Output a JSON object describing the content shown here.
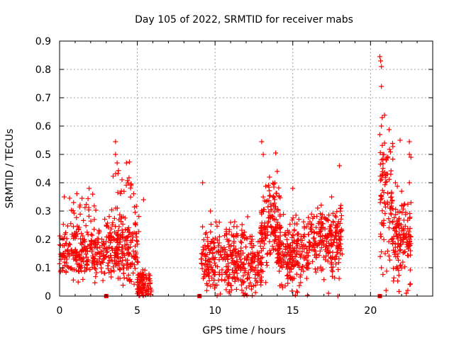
{
  "chart_data": {
    "type": "scatter",
    "title": "Day 105 of 2022, SRMTID for receiver mabs",
    "xlabel": "GPS time / hours",
    "ylabel": "SRMTID / TECUs",
    "xlim": [
      0,
      24
    ],
    "ylim": [
      0,
      0.9
    ],
    "xticks": [
      0,
      5,
      10,
      15,
      20
    ],
    "xtick_labels": [
      "0",
      "5",
      "10",
      "15",
      "20"
    ],
    "yticks": [
      0,
      0.1,
      0.2,
      0.3,
      0.4,
      0.5,
      0.6,
      0.7,
      0.8,
      0.9
    ],
    "ytick_labels": [
      "0",
      "0.1",
      "0.2",
      "0.3",
      "0.4",
      "0.5",
      "0.6",
      "0.7",
      "0.8",
      "0.9"
    ],
    "grid": true,
    "marker": "+",
    "color": "#ff0000",
    "clusters": [
      {
        "x_range": [
          0.0,
          2.9
        ],
        "mean": 0.16,
        "spread": 0.07,
        "count": 230
      },
      {
        "x_range": [
          0.4,
          2.4
        ],
        "mean": 0.3,
        "spread": 0.05,
        "count": 25
      },
      {
        "x_range": [
          2.9,
          5.1
        ],
        "mean": 0.17,
        "spread": 0.08,
        "count": 220
      },
      {
        "x_range": [
          3.3,
          5.0
        ],
        "mean": 0.37,
        "spread": 0.07,
        "count": 25
      },
      {
        "x_range": [
          5.0,
          5.9
        ],
        "mean": 0.04,
        "spread": 0.04,
        "count": 90
      },
      {
        "x_range": [
          9.1,
          11.8
        ],
        "mean": 0.13,
        "spread": 0.08,
        "count": 260
      },
      {
        "x_range": [
          11.8,
          13.0
        ],
        "mean": 0.12,
        "spread": 0.08,
        "count": 110
      },
      {
        "x_range": [
          12.9,
          14.2
        ],
        "mean": 0.25,
        "spread": 0.11,
        "count": 150
      },
      {
        "x_range": [
          14.0,
          16.0
        ],
        "mean": 0.15,
        "spread": 0.08,
        "count": 200
      },
      {
        "x_range": [
          16.0,
          18.2
        ],
        "mean": 0.2,
        "spread": 0.08,
        "count": 220
      },
      {
        "x_range": [
          20.6,
          21.5
        ],
        "mean": 0.35,
        "spread": 0.15,
        "count": 90
      },
      {
        "x_range": [
          21.4,
          22.6
        ],
        "mean": 0.2,
        "spread": 0.1,
        "count": 130
      }
    ],
    "highlight_points": [
      {
        "x": 0.3,
        "y": 0.35
      },
      {
        "x": 0.9,
        "y": 0.33
      },
      {
        "x": 1.9,
        "y": 0.38
      },
      {
        "x": 3.6,
        "y": 0.545
      },
      {
        "x": 3.6,
        "y": 0.5
      },
      {
        "x": 3.7,
        "y": 0.47
      },
      {
        "x": 4.3,
        "y": 0.47
      },
      {
        "x": 4.4,
        "y": 0.4
      },
      {
        "x": 4.6,
        "y": 0.39
      },
      {
        "x": 5.4,
        "y": 0.34
      },
      {
        "x": 9.2,
        "y": 0.4
      },
      {
        "x": 9.7,
        "y": 0.3
      },
      {
        "x": 11.0,
        "y": 0.26
      },
      {
        "x": 12.1,
        "y": 0.28
      },
      {
        "x": 13.0,
        "y": 0.545
      },
      {
        "x": 13.1,
        "y": 0.5
      },
      {
        "x": 13.9,
        "y": 0.505
      },
      {
        "x": 13.5,
        "y": 0.42
      },
      {
        "x": 14.0,
        "y": 0.44
      },
      {
        "x": 15.0,
        "y": 0.38
      },
      {
        "x": 17.5,
        "y": 0.35
      },
      {
        "x": 18.0,
        "y": 0.46
      },
      {
        "x": 20.6,
        "y": 0.845
      },
      {
        "x": 20.65,
        "y": 0.83
      },
      {
        "x": 20.7,
        "y": 0.81
      },
      {
        "x": 20.7,
        "y": 0.74
      },
      {
        "x": 20.75,
        "y": 0.63
      },
      {
        "x": 20.6,
        "y": 0.57
      },
      {
        "x": 20.7,
        "y": 0.6
      },
      {
        "x": 20.9,
        "y": 0.54
      },
      {
        "x": 20.8,
        "y": 0.5
      },
      {
        "x": 21.0,
        "y": 0.48
      },
      {
        "x": 21.3,
        "y": 0.43
      },
      {
        "x": 21.9,
        "y": 0.55
      },
      {
        "x": 21.6,
        "y": 0.4
      },
      {
        "x": 22.0,
        "y": 0.37
      },
      {
        "x": 22.5,
        "y": 0.545
      },
      {
        "x": 22.5,
        "y": 0.5
      },
      {
        "x": 22.6,
        "y": 0.49
      },
      {
        "x": 22.5,
        "y": 0.4
      },
      {
        "x": 22.6,
        "y": 0.33
      },
      {
        "x": 22.4,
        "y": 0.02
      },
      {
        "x": 22.3,
        "y": 0.01
      },
      {
        "x": 21.0,
        "y": 0.02
      },
      {
        "x": 20.7,
        "y": 0.1
      },
      {
        "x": 17.3,
        "y": 0.01
      },
      {
        "x": 17.9,
        "y": 0.0
      }
    ],
    "zero_markers": [
      {
        "x": 3.0,
        "y": 0.0
      },
      {
        "x": 9.0,
        "y": 0.0
      },
      {
        "x": 20.6,
        "y": 0.0
      }
    ]
  }
}
